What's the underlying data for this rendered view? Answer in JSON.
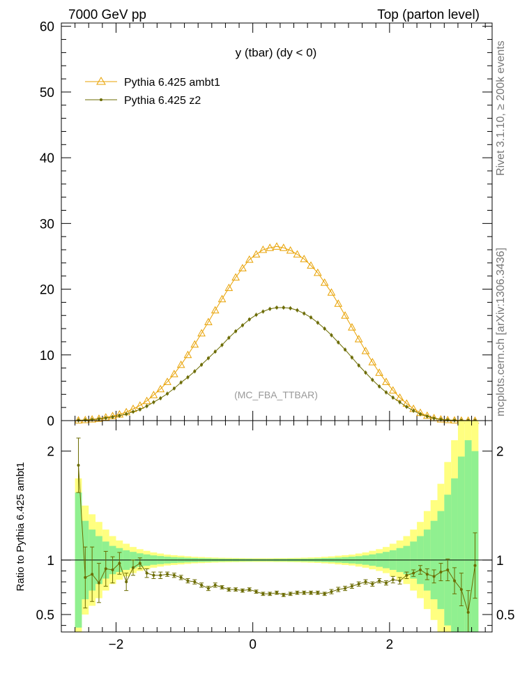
{
  "header": {
    "left": "7000 GeV pp",
    "right": "Top (parton level)"
  },
  "side_labels": {
    "rivet": "Rivet 3.1.10, ≥ 200k events",
    "mcplots": "mcplots.cern.ch [arXiv:1306.3436]"
  },
  "colors": {
    "ambt1": "#e8a100",
    "z2": "#6b6b00",
    "band_yellow": "#ffff80",
    "band_green": "#90f090"
  },
  "chart_data": [
    {
      "type": "line",
      "title": "y (tbar) (dy < 0)",
      "watermark": "(MC_FBA_TTBAR)",
      "xlim": [
        -2.8,
        3.5
      ],
      "ylim": [
        0,
        60.5
      ],
      "yticks": [
        0,
        10,
        20,
        30,
        40,
        50,
        60
      ],
      "ytick_labels": [
        "0",
        "10",
        "20",
        "30",
        "40",
        "50",
        "60"
      ],
      "legend": [
        {
          "label": "Pythia 6.425 ambt1",
          "marker": "triangle"
        },
        {
          "label": "Pythia 6.425 z2",
          "marker": "dot"
        }
      ],
      "x": [
        -2.55,
        -2.45,
        -2.35,
        -2.25,
        -2.15,
        -2.05,
        -1.95,
        -1.85,
        -1.75,
        -1.65,
        -1.55,
        -1.45,
        -1.35,
        -1.25,
        -1.15,
        -1.05,
        -0.95,
        -0.85,
        -0.75,
        -0.65,
        -0.55,
        -0.45,
        -0.35,
        -0.25,
        -0.15,
        -0.05,
        0.05,
        0.15,
        0.25,
        0.35,
        0.45,
        0.55,
        0.65,
        0.75,
        0.85,
        0.95,
        1.05,
        1.15,
        1.25,
        1.35,
        1.45,
        1.55,
        1.65,
        1.75,
        1.85,
        1.95,
        2.05,
        2.15,
        2.25,
        2.35,
        2.45,
        2.55,
        2.65,
        2.75,
        2.85,
        2.95,
        3.05,
        3.15,
        3.25
      ],
      "series": [
        {
          "name": "Pythia 6.425 ambt1",
          "values": [
            0.05,
            0.1,
            0.2,
            0.3,
            0.5,
            0.7,
            0.95,
            1.3,
            1.8,
            2.3,
            3.0,
            3.9,
            4.8,
            5.9,
            7.1,
            8.5,
            10.0,
            11.6,
            13.3,
            15.0,
            16.8,
            18.5,
            20.2,
            21.8,
            23.2,
            24.5,
            25.3,
            26.0,
            26.3,
            26.5,
            26.3,
            25.9,
            25.3,
            24.6,
            23.6,
            22.5,
            21.0,
            19.5,
            17.8,
            16.0,
            14.2,
            12.4,
            10.6,
            8.9,
            7.3,
            5.9,
            4.6,
            3.5,
            2.6,
            1.8,
            1.2,
            0.75,
            0.4,
            0.2,
            0.1,
            0.05,
            0.02,
            0.01,
            0.0
          ]
        },
        {
          "name": "Pythia 6.425 z2",
          "values": [
            0.04,
            0.08,
            0.15,
            0.25,
            0.4,
            0.55,
            0.75,
            1.0,
            1.35,
            1.7,
            2.2,
            2.8,
            3.4,
            4.1,
            4.9,
            5.8,
            6.6,
            7.5,
            8.5,
            9.5,
            10.5,
            11.5,
            12.6,
            13.6,
            14.5,
            15.4,
            16.1,
            16.6,
            17.0,
            17.2,
            17.2,
            17.1,
            16.8,
            16.3,
            15.7,
            14.9,
            14.0,
            13.0,
            11.9,
            10.8,
            9.6,
            8.4,
            7.3,
            6.2,
            5.2,
            4.3,
            3.5,
            2.8,
            2.1,
            1.5,
            1.0,
            0.65,
            0.35,
            0.18,
            0.09,
            0.04,
            0.02,
            0.01,
            0.0
          ]
        }
      ]
    },
    {
      "type": "line",
      "ylabel": "Ratio to Pythia 6.425 ambt1",
      "xlim": [
        -2.8,
        3.5
      ],
      "ylim": [
        0.34,
        2.28
      ],
      "xticks": [
        -2,
        0,
        2
      ],
      "xtick_labels": [
        "−2",
        "0",
        "2"
      ],
      "yticks": [
        0.5,
        1,
        2
      ],
      "ytick_labels": [
        "0.5",
        "1",
        "2"
      ],
      "reference_line": 1,
      "band_x_edges": [
        -2.6,
        -2.5,
        -2.4,
        -2.3,
        -2.2,
        -2.1,
        -2.0,
        -1.9,
        -1.8,
        -1.7,
        -1.6,
        -1.5,
        -1.4,
        -1.3,
        -1.2,
        -1.1,
        -1.0,
        -0.9,
        -0.8,
        -0.7,
        -0.6,
        -0.5,
        -0.4,
        -0.3,
        -0.2,
        -0.1,
        0.0,
        0.1,
        0.2,
        0.3,
        0.4,
        0.5,
        0.6,
        0.7,
        0.8,
        0.9,
        1.0,
        1.1,
        1.2,
        1.3,
        1.4,
        1.5,
        1.6,
        1.7,
        1.8,
        1.9,
        2.0,
        2.1,
        2.2,
        2.3,
        2.4,
        2.5,
        2.6,
        2.7,
        2.8,
        2.9,
        3.0,
        3.1,
        3.2,
        3.3
      ],
      "band_yellow": [
        0.75,
        0.5,
        0.42,
        0.35,
        0.28,
        0.22,
        0.18,
        0.15,
        0.12,
        0.1,
        0.085,
        0.07,
        0.06,
        0.05,
        0.045,
        0.04,
        0.035,
        0.03,
        0.028,
        0.025,
        0.023,
        0.021,
        0.02,
        0.019,
        0.018,
        0.017,
        0.017,
        0.017,
        0.017,
        0.018,
        0.018,
        0.019,
        0.02,
        0.022,
        0.024,
        0.026,
        0.03,
        0.034,
        0.04,
        0.045,
        0.05,
        0.06,
        0.07,
        0.085,
        0.1,
        0.12,
        0.15,
        0.18,
        0.22,
        0.28,
        0.35,
        0.45,
        0.55,
        0.7,
        0.9,
        1.1,
        1.3,
        1.7,
        2.0
      ],
      "band_green": [
        0.62,
        0.36,
        0.28,
        0.22,
        0.17,
        0.13,
        0.11,
        0.09,
        0.075,
        0.062,
        0.052,
        0.043,
        0.037,
        0.031,
        0.027,
        0.024,
        0.021,
        0.019,
        0.017,
        0.016,
        0.014,
        0.013,
        0.012,
        0.012,
        0.011,
        0.011,
        0.01,
        0.01,
        0.01,
        0.011,
        0.011,
        0.012,
        0.012,
        0.013,
        0.014,
        0.016,
        0.018,
        0.02,
        0.023,
        0.027,
        0.031,
        0.036,
        0.043,
        0.052,
        0.062,
        0.075,
        0.09,
        0.11,
        0.13,
        0.17,
        0.22,
        0.28,
        0.36,
        0.45,
        0.6,
        0.75,
        0.95,
        1.1,
        1.0
      ],
      "series": [
        {
          "name": "Pythia 6.425 z2 / ambt1",
          "x": [
            -2.55,
            -2.45,
            -2.35,
            -2.25,
            -2.15,
            -2.05,
            -1.95,
            -1.85,
            -1.75,
            -1.65,
            -1.55,
            -1.45,
            -1.35,
            -1.25,
            -1.15,
            -1.05,
            -0.95,
            -0.85,
            -0.75,
            -0.65,
            -0.55,
            -0.45,
            -0.35,
            -0.25,
            -0.15,
            -0.05,
            0.05,
            0.15,
            0.25,
            0.35,
            0.45,
            0.55,
            0.65,
            0.75,
            0.85,
            0.95,
            1.05,
            1.15,
            1.25,
            1.35,
            1.45,
            1.55,
            1.65,
            1.75,
            1.85,
            1.95,
            2.05,
            2.15,
            2.25,
            2.35,
            2.45,
            2.55,
            2.65,
            2.75,
            2.85,
            2.95,
            3.05,
            3.15,
            3.25
          ],
          "values": [
            1.87,
            0.84,
            0.87,
            0.79,
            0.92,
            0.91,
            0.97,
            0.8,
            0.93,
            0.97,
            0.88,
            0.86,
            0.86,
            0.87,
            0.86,
            0.84,
            0.81,
            0.8,
            0.77,
            0.74,
            0.77,
            0.75,
            0.73,
            0.73,
            0.72,
            0.73,
            0.71,
            0.69,
            0.69,
            0.7,
            0.68,
            0.69,
            0.7,
            0.7,
            0.7,
            0.7,
            0.69,
            0.71,
            0.73,
            0.74,
            0.76,
            0.78,
            0.8,
            0.78,
            0.81,
            0.79,
            0.82,
            0.81,
            0.86,
            0.88,
            0.91,
            0.87,
            0.85,
            0.89,
            0.91,
            0.81,
            0.73,
            0.52,
            0.95
          ],
          "errors": [
            0.25,
            0.28,
            0.25,
            0.18,
            0.16,
            0.12,
            0.1,
            0.08,
            0.07,
            0.05,
            0.04,
            0.03,
            0.03,
            0.02,
            0.02,
            0.02,
            0.02,
            0.02,
            0.02,
            0.02,
            0.02,
            0.015,
            0.015,
            0.015,
            0.015,
            0.015,
            0.015,
            0.015,
            0.015,
            0.015,
            0.015,
            0.015,
            0.015,
            0.015,
            0.015,
            0.015,
            0.015,
            0.02,
            0.02,
            0.02,
            0.02,
            0.02,
            0.02,
            0.02,
            0.02,
            0.02,
            0.03,
            0.03,
            0.03,
            0.03,
            0.04,
            0.05,
            0.06,
            0.08,
            0.1,
            0.12,
            0.15,
            0.2,
            0.3
          ]
        }
      ]
    }
  ]
}
